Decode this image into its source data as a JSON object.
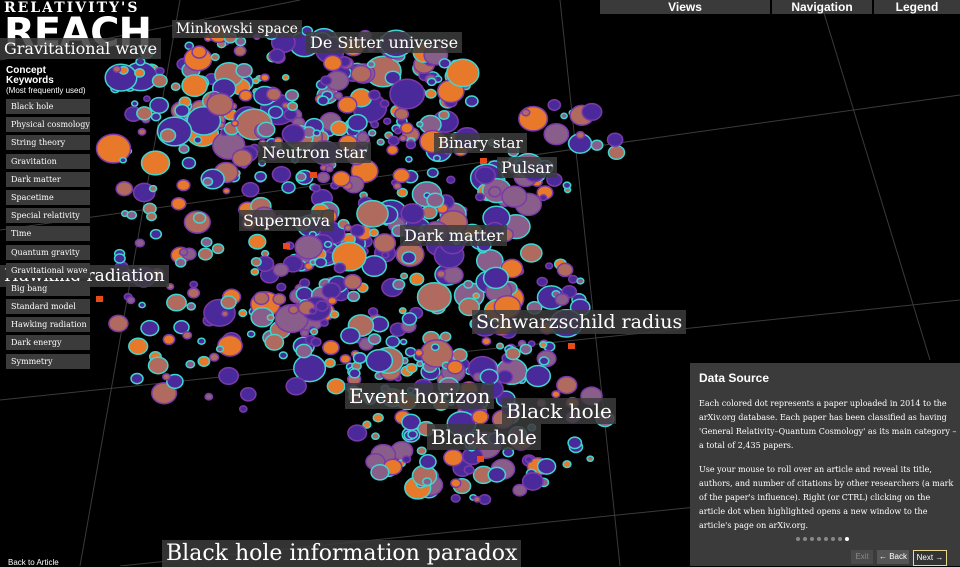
{
  "logo": {
    "top": "RELATIVITY'S",
    "main": "REACH"
  },
  "topnav": [
    {
      "label": "Views",
      "name": "views-button"
    },
    {
      "label": "Navigation",
      "name": "navigation-button"
    },
    {
      "label": "Legend",
      "name": "legend-button"
    }
  ],
  "keywords": {
    "title": "Concept Keywords",
    "subtitle": "(Most frequently used)",
    "items": [
      "Black hole",
      "Physical cosmology",
      "String theory",
      "Gravitation",
      "Dark matter",
      "Spacetime",
      "Special relativity",
      "Time",
      "Quantum gravity",
      "Gravitational wave",
      "Big bang",
      "Standard model",
      "Hawking radiation",
      "Dark energy",
      "Symmetry"
    ]
  },
  "labels": [
    {
      "text": "Minkowski space",
      "name": "label-minkowski-space"
    },
    {
      "text": "Gravitational wave",
      "name": "label-gravitational-wave"
    },
    {
      "text": "De Sitter universe",
      "name": "label-de-sitter-universe"
    },
    {
      "text": "Neutron star",
      "name": "label-neutron-star"
    },
    {
      "text": "Binary star",
      "name": "label-binary-star"
    },
    {
      "text": "Pulsar",
      "name": "label-pulsar"
    },
    {
      "text": "Supernova",
      "name": "label-supernova"
    },
    {
      "text": "Dark matter",
      "name": "label-dark-matter"
    },
    {
      "text": "Hawking radiation",
      "name": "label-hawking-radiation"
    },
    {
      "text": "Schwarzschild radius",
      "name": "label-schwarzschild-radius"
    },
    {
      "text": "Event horizon",
      "name": "label-event-horizon"
    },
    {
      "text": "Black hole",
      "name": "label-black-hole-1"
    },
    {
      "text": "Black hole",
      "name": "label-black-hole-2"
    },
    {
      "text": "Black hole information paradox",
      "name": "label-black-hole-information-paradox"
    }
  ],
  "data_source": {
    "title": "Data Source",
    "para1": "Each colored dot represents a paper uploaded in 2014 to the arXiv.org database. Each paper has been classified as having 'General Relativity–Quantum Cosmology' as its main category – a total of 2,435 papers.",
    "para2": "Use your mouse to roll over an article and reveal its title, authors, and number of citations by other researchers (a mark of the paper's influence). Right (or CTRL) clicking on the article dot when highlighted opens a new window to the article's page on arXiv.org.",
    "exit": "Exit",
    "back": "← Back",
    "next": "Next →"
  },
  "footer": {
    "back_to_article": "Back to Article"
  },
  "colors": {
    "accent_orange": "#e8782a",
    "dot_purple": "#4a2a9a",
    "dot_mauve": "#8a5e8a",
    "outline_cyan": "#3fd6d0",
    "next_border": "#e8d890"
  }
}
